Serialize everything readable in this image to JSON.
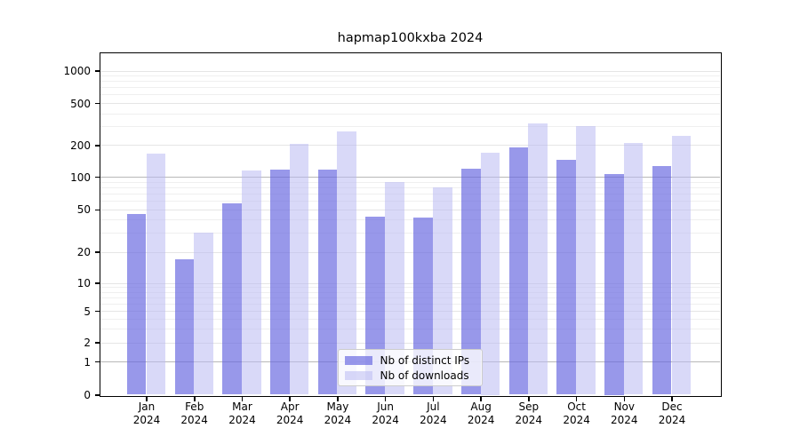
{
  "title": "hapmap100kxba 2024",
  "chart_data": {
    "type": "bar",
    "title": "hapmap100kxba 2024",
    "scale": "symlog",
    "grid": true,
    "categories": [
      "Jan",
      "Feb",
      "Mar",
      "Apr",
      "May",
      "Jun",
      "Jul",
      "Aug",
      "Sep",
      "Oct",
      "Nov",
      "Dec"
    ],
    "category_year": "2024",
    "series": [
      {
        "name": "Nb of distinct IPs",
        "color": "rgba(103,103,224,0.68)",
        "color_on_white": "#9a9aec",
        "values": [
          45,
          17,
          57,
          116,
          116,
          43,
          42,
          119,
          189,
          145,
          107,
          126
        ]
      },
      {
        "name": "Nb of downloads",
        "color": "rgba(185,185,242,0.55)",
        "color_on_white": "#dadaf8",
        "values": [
          165,
          30,
          114,
          204,
          270,
          89,
          80,
          169,
          320,
          300,
          210,
          246
        ]
      }
    ],
    "yticks": [
      0,
      1,
      2,
      5,
      10,
      20,
      50,
      100,
      200,
      500,
      1000
    ],
    "minor_gridline_values": [
      3,
      4,
      6,
      7,
      8,
      9,
      30,
      40,
      60,
      70,
      80,
      90,
      300,
      400,
      600,
      700,
      800,
      900
    ],
    "strong_gridline_values": [
      1,
      100
    ],
    "ylim": [
      0,
      1000
    ],
    "xlabel": "",
    "ylabel": "",
    "legend_position": "lower-center"
  }
}
